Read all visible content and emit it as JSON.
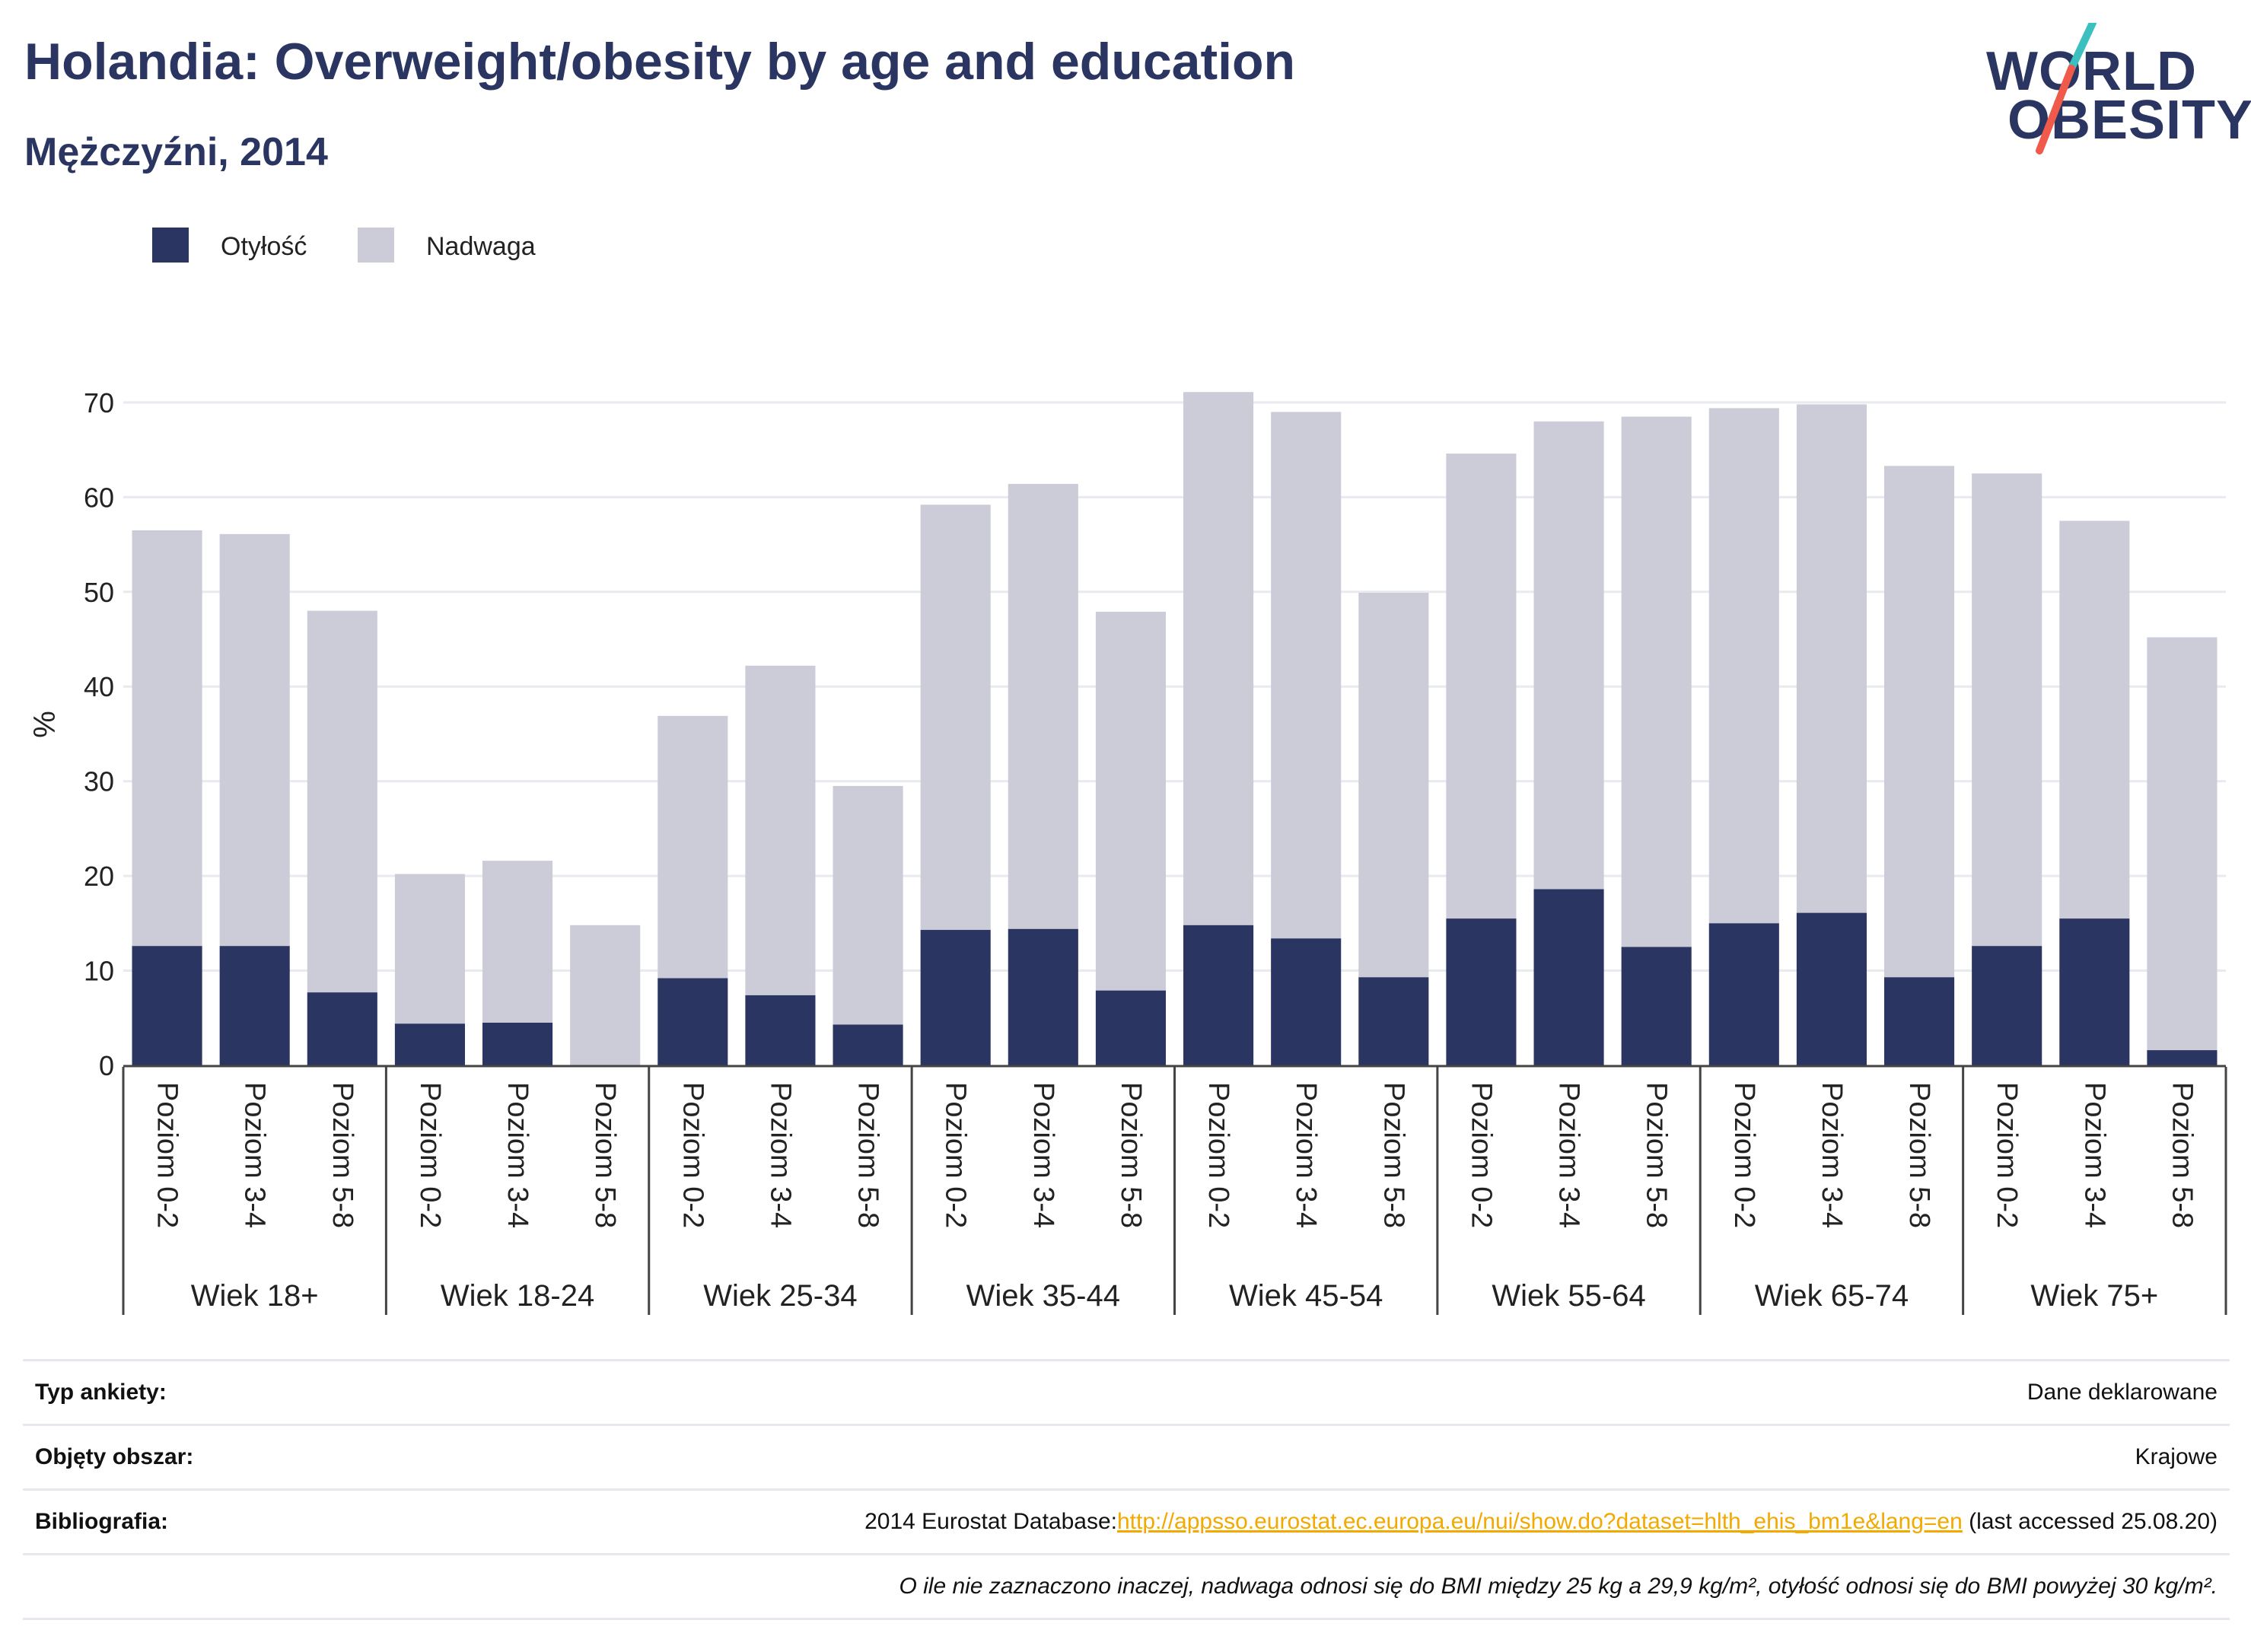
{
  "header": {
    "title": "Holandia: Overweight/obesity by age and education",
    "subtitle": "Mężczyźni, 2014"
  },
  "logo": {
    "line1": "WORLD",
    "line2": "OBESITY",
    "accent_colors": [
      "#3bbfbf",
      "#f05a4a"
    ]
  },
  "colors": {
    "obesity": "#2b3561",
    "overweight": "#cbccd8",
    "grid": "#e9eaf0",
    "axis": "#444444",
    "text": "#222222"
  },
  "chart_data": {
    "type": "bar",
    "stacked": true,
    "ylabel": "%",
    "ylim": [
      0,
      72
    ],
    "yticks": [
      0,
      10,
      20,
      30,
      40,
      50,
      60,
      70
    ],
    "grid": true,
    "legend_position": "top-left",
    "groups": [
      "Wiek 18+",
      "Wiek 18-24",
      "Wiek 25-34",
      "Wiek 35-44",
      "Wiek 45-54",
      "Wiek 55-64",
      "Wiek 65-74",
      "Wiek 75+"
    ],
    "levels": [
      "Poziom 0-2",
      "Poziom 3-4",
      "Poziom 5-8"
    ],
    "series": [
      {
        "name": "Otyłość",
        "values": [
          12.6,
          12.6,
          7.7,
          4.4,
          4.5,
          0,
          9.2,
          7.4,
          4.3,
          14.3,
          14.4,
          7.9,
          14.8,
          13.4,
          9.3,
          15.5,
          18.6,
          12.5,
          15.0,
          16.1,
          9.3,
          12.6,
          15.5,
          1.6
        ]
      },
      {
        "name": "Nadwaga",
        "values": [
          43.9,
          43.5,
          40.3,
          15.8,
          17.1,
          14.8,
          27.7,
          34.8,
          25.2,
          44.9,
          47.0,
          40.0,
          56.3,
          55.6,
          40.6,
          49.1,
          49.4,
          56.0,
          54.4,
          53.7,
          54.0,
          49.9,
          42.0,
          43.6
        ]
      }
    ]
  },
  "meta": {
    "survey_type_label": "Typ ankiety:",
    "survey_type_value": "Dane deklarowane",
    "coverage_label": "Objęty obszar:",
    "coverage_value": "Krajowe",
    "bibliography_label": "Bibliografia:",
    "bibliography_prefix": "2014 Eurostat Database:",
    "bibliography_link": "http://appsso.eurostat.ec.europa.eu/nui/show.do?dataset=hlth_ehis_bm1e&lang=en",
    "bibliography_suffix": " (last accessed 25.08.20)",
    "note": "O ile nie zaznaczono inaczej, nadwaga odnosi się do BMI między 25 kg a 29,9 kg/m², otyłość odnosi się do BMI powyżej 30 kg/m²."
  }
}
